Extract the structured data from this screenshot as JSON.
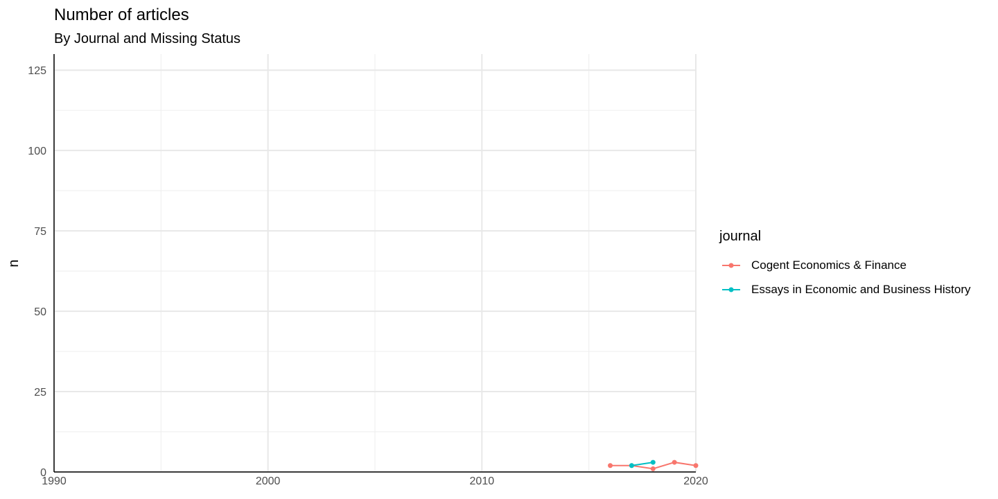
{
  "chart_data": {
    "type": "line",
    "title": "Number of articles",
    "subtitle": "By Journal and Missing Status",
    "xlabel": "",
    "ylabel": "n",
    "xlim": [
      1990,
      2020
    ],
    "ylim": [
      0,
      130
    ],
    "x_ticks": [
      1990,
      2000,
      2010,
      2020
    ],
    "y_ticks": [
      0,
      25,
      50,
      75,
      100,
      125
    ],
    "grid": true,
    "legend": {
      "title": "journal",
      "placement": "right"
    },
    "series": [
      {
        "name": "Cogent Economics & Finance",
        "color": "#F8766D",
        "x": [
          2016,
          2017,
          2018,
          2019,
          2020
        ],
        "y": [
          2,
          2,
          1,
          3,
          2
        ]
      },
      {
        "name": "Essays in Economic and Business History",
        "color": "#00BFC4",
        "x": [
          2017,
          2018
        ],
        "y": [
          2,
          3
        ]
      }
    ]
  }
}
